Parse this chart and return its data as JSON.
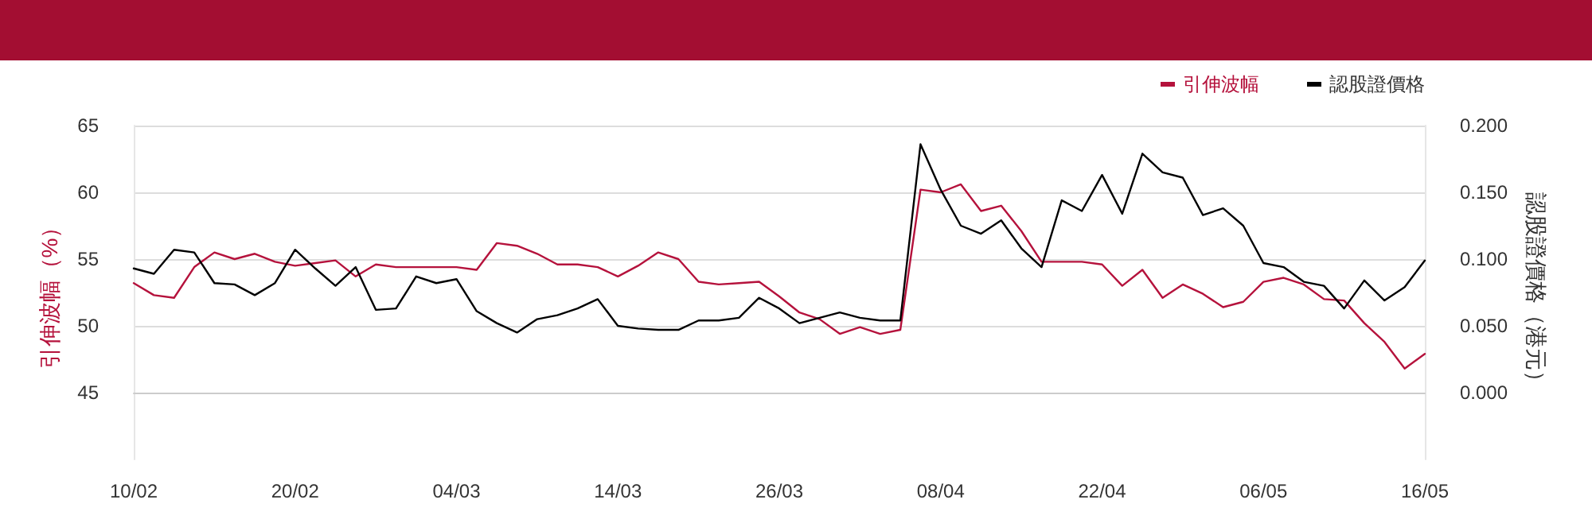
{
  "chart_data": {
    "type": "line",
    "categories": [
      "10/02",
      null,
      null,
      null,
      null,
      null,
      null,
      null,
      "20/02",
      null,
      null,
      null,
      null,
      null,
      null,
      null,
      "04/03",
      null,
      null,
      null,
      null,
      null,
      null,
      null,
      "14/03",
      null,
      null,
      null,
      null,
      null,
      null,
      null,
      "26/03",
      null,
      null,
      null,
      null,
      null,
      null,
      null,
      "08/04",
      null,
      null,
      null,
      null,
      null,
      null,
      null,
      "22/04",
      null,
      null,
      null,
      null,
      null,
      null,
      null,
      "06/05",
      null,
      null,
      null,
      null,
      null,
      null,
      null,
      "16/05"
    ],
    "series": [
      {
        "name": "引伸波幅",
        "color": "#b5123c",
        "values": [
          53.2,
          52.3,
          52.1,
          54.4,
          55.5,
          55.0,
          55.4,
          54.8,
          54.5,
          54.7,
          54.9,
          53.7,
          54.6,
          54.4,
          54.4,
          54.4,
          54.4,
          54.2,
          56.2,
          56.0,
          55.4,
          54.6,
          54.6,
          54.4,
          53.7,
          54.5,
          55.5,
          55.0,
          53.3,
          53.1,
          53.2,
          53.3,
          52.2,
          51.0,
          50.5,
          49.4,
          49.9,
          49.4,
          49.7,
          60.2,
          60.0,
          60.6,
          58.6,
          59.0,
          57.1,
          54.8,
          54.8,
          54.8,
          54.6,
          53.0,
          54.2,
          52.1,
          53.1,
          52.4,
          51.4,
          51.8,
          53.3,
          53.6,
          53.1,
          52.0,
          51.9,
          50.2,
          48.8,
          46.8,
          47.9
        ]
      },
      {
        "name": "認股證價格",
        "color": "#000000",
        "axis": "y2",
        "values": [
          0.093,
          0.089,
          0.107,
          0.105,
          0.082,
          0.081,
          0.073,
          0.082,
          0.107,
          0.093,
          0.08,
          0.094,
          0.062,
          0.063,
          0.087,
          0.082,
          0.085,
          0.061,
          0.052,
          0.045,
          0.055,
          0.058,
          0.063,
          0.07,
          0.05,
          0.048,
          0.047,
          0.047,
          0.054,
          0.054,
          0.056,
          0.071,
          0.063,
          0.052,
          0.056,
          0.06,
          0.056,
          0.054,
          0.054,
          0.186,
          0.152,
          0.125,
          0.119,
          0.129,
          0.108,
          0.094,
          0.144,
          0.136,
          0.163,
          0.134,
          0.179,
          0.165,
          0.161,
          0.133,
          0.138,
          0.125,
          0.097,
          0.094,
          0.083,
          0.08,
          0.063,
          0.084,
          0.069,
          0.079,
          0.099
        ]
      }
    ],
    "ylabel": "引伸波幅（%）",
    "y2label": "認股證價格（港元）",
    "ylim": [
      40,
      65
    ],
    "yticks": [
      45,
      50,
      55,
      60,
      65
    ],
    "y2lim": [
      -0.05,
      0.2
    ],
    "y2ticks": [
      {
        "value": 0,
        "label": "0.000"
      },
      {
        "value": 0.05,
        "label": "0.050"
      },
      {
        "value": 0.1,
        "label": "0.100"
      },
      {
        "value": 0.15,
        "label": "0.150"
      },
      {
        "value": 0.2,
        "label": "0.200"
      }
    ],
    "grid": "y",
    "legend": "top right",
    "marker": "none",
    "line_style": "solid"
  }
}
